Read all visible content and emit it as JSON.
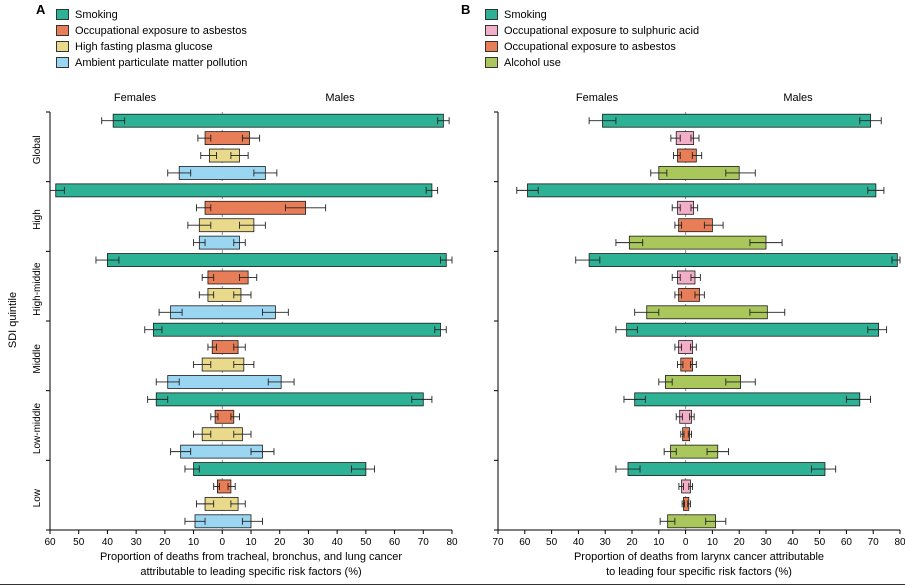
{
  "figure": {
    "background": "#ffffff"
  },
  "chart_data": [
    {
      "panel_label": "A",
      "type": "bar",
      "subtype": "diverging-horizontal-range-bars-with-error",
      "side_labels": {
        "left": "Females",
        "right": "Males"
      },
      "ylabel": "SDI quintile",
      "xlabel_lines": [
        "Proportion of deaths from tracheal, bronchus, and lung cancer",
        "attributable to leading specific risk factors (%)"
      ],
      "x_axis": {
        "min": -60,
        "max": 80,
        "tick_step": 10,
        "tick_labels": [
          "60",
          "50",
          "40",
          "30",
          "20",
          "10",
          "0",
          "10",
          "20",
          "30",
          "40",
          "50",
          "60",
          "70",
          "80"
        ]
      },
      "groups": [
        "Global",
        "High",
        "High-middle",
        "Middle",
        "Low-middle",
        "Low"
      ],
      "series": [
        {
          "name": "Smoking",
          "color": "#2eb295",
          "female": [
            38,
            58,
            40,
            24,
            23,
            10
          ],
          "female_ci": [
            [
              34,
              42
            ],
            [
              55,
              60
            ],
            [
              36,
              44
            ],
            [
              21,
              27
            ],
            [
              19,
              26
            ],
            [
              8,
              13
            ]
          ],
          "male": [
            77,
            73,
            78,
            76,
            70,
            50
          ],
          "male_ci": [
            [
              75,
              79
            ],
            [
              71,
              75
            ],
            [
              76,
              80
            ],
            [
              74,
              78
            ],
            [
              66,
              73
            ],
            [
              45,
              53
            ]
          ]
        },
        {
          "name": "Occupational exposure to asbestos",
          "color": "#e87e57",
          "female": [
            6,
            6,
            5,
            3.5,
            2.5,
            1.7
          ],
          "female_ci": [
            [
              4,
              8.5
            ],
            [
              4,
              9
            ],
            [
              3,
              7
            ],
            [
              2,
              5
            ],
            [
              1.5,
              4
            ],
            [
              1,
              3
            ]
          ],
          "male": [
            9.5,
            29,
            9,
            5.5,
            4,
            3
          ],
          "male_ci": [
            [
              7,
              13
            ],
            [
              22,
              36
            ],
            [
              6,
              12
            ],
            [
              4,
              8
            ],
            [
              3,
              6
            ],
            [
              2,
              4.5
            ]
          ]
        },
        {
          "name": "High fasting plasma glucose",
          "color": "#e9d98b",
          "female": [
            4.5,
            8,
            5,
            7,
            7,
            6
          ],
          "female_ci": [
            [
              2,
              7.5
            ],
            [
              4,
              12
            ],
            [
              3,
              8
            ],
            [
              4,
              10
            ],
            [
              4,
              10
            ],
            [
              3,
              9
            ]
          ],
          "male": [
            6,
            11,
            6.5,
            7.5,
            7,
            5.5
          ],
          "male_ci": [
            [
              3,
              9
            ],
            [
              6,
              15
            ],
            [
              4,
              10
            ],
            [
              4,
              11
            ],
            [
              4,
              10
            ],
            [
              3,
              8
            ]
          ]
        },
        {
          "name": "Ambient particulate matter pollution",
          "color": "#9ad6f2",
          "female": [
            15,
            8,
            18,
            19,
            14.5,
            9.5
          ],
          "female_ci": [
            [
              11,
              19
            ],
            [
              6,
              10
            ],
            [
              14,
              22
            ],
            [
              15,
              23
            ],
            [
              11,
              18
            ],
            [
              6,
              13
            ]
          ],
          "male": [
            15,
            6,
            18.5,
            20.5,
            14,
            10
          ],
          "male_ci": [
            [
              11,
              19
            ],
            [
              4,
              8
            ],
            [
              14,
              23
            ],
            [
              16,
              25
            ],
            [
              10,
              18
            ],
            [
              7,
              14
            ]
          ]
        }
      ]
    },
    {
      "panel_label": "B",
      "type": "bar",
      "subtype": "diverging-horizontal-range-bars-with-error",
      "side_labels": {
        "left": "Females",
        "right": "Males"
      },
      "xlabel_lines": [
        "Proportion of deaths from larynx cancer attributable",
        "to leading four specific risk factors (%)"
      ],
      "x_axis": {
        "min": -70,
        "max": 80,
        "tick_step": 10,
        "tick_labels": [
          "70",
          "60",
          "50",
          "40",
          "30",
          "20",
          "10",
          "0",
          "10",
          "20",
          "30",
          "40",
          "50",
          "60",
          "70",
          "80"
        ]
      },
      "groups": [
        "Global",
        "High",
        "High-middle",
        "Middle",
        "Low-middle",
        "Low"
      ],
      "series": [
        {
          "name": "Smoking",
          "color": "#2eb295",
          "female": [
            31,
            59,
            36,
            22,
            19,
            21.5
          ],
          "female_ci": [
            [
              26,
              36
            ],
            [
              55,
              63
            ],
            [
              32,
              41
            ],
            [
              18,
              26
            ],
            [
              15,
              23
            ],
            [
              17,
              26
            ]
          ],
          "male": [
            69,
            71,
            79,
            72,
            65,
            52
          ],
          "male_ci": [
            [
              65,
              73
            ],
            [
              68,
              74
            ],
            [
              77,
              80
            ],
            [
              68,
              75
            ],
            [
              60,
              69
            ],
            [
              47,
              56
            ]
          ]
        },
        {
          "name": "Occupational exposure to sulphuric acid",
          "color": "#f3afc8",
          "female": [
            3.5,
            3,
            3,
            2.6,
            2.2,
            1.5
          ],
          "female_ci": [
            [
              2,
              5.5
            ],
            [
              2,
              5
            ],
            [
              2,
              5
            ],
            [
              1.5,
              4
            ],
            [
              1.2,
              3.5
            ],
            [
              0.8,
              2.5
            ]
          ],
          "male": [
            3,
            3,
            3.5,
            2.6,
            2.2,
            1.8
          ],
          "male_ci": [
            [
              2,
              5
            ],
            [
              2,
              4.5
            ],
            [
              2,
              5.5
            ],
            [
              1.8,
              4
            ],
            [
              1.5,
              3.2
            ],
            [
              1.2,
              2.6
            ]
          ]
        },
        {
          "name": "Occupational exposure to asbestos",
          "color": "#e87e57",
          "female": [
            3,
            2.6,
            2.6,
            1.8,
            1.1,
            0.8
          ],
          "female_ci": [
            [
              2,
              4.5
            ],
            [
              1.5,
              4
            ],
            [
              1.5,
              4
            ],
            [
              1,
              3
            ],
            [
              0.6,
              1.8
            ],
            [
              0.4,
              1.3
            ]
          ],
          "male": [
            4,
            10,
            5.2,
            2.6,
            1.5,
            1.2
          ],
          "male_ci": [
            [
              2.5,
              6
            ],
            [
              7,
              14
            ],
            [
              3.5,
              7
            ],
            [
              1.8,
              4
            ],
            [
              1,
              2.2
            ],
            [
              0.8,
              1.8
            ]
          ]
        },
        {
          "name": "Alcohol use",
          "color": "#a9c75b",
          "female": [
            10,
            21,
            14.5,
            7.5,
            5.6,
            6.7
          ],
          "female_ci": [
            [
              7,
              13
            ],
            [
              16,
              26
            ],
            [
              10,
              19
            ],
            [
              5,
              10
            ],
            [
              3.5,
              8
            ],
            [
              4,
              9.5
            ]
          ],
          "male": [
            20,
            30,
            30.5,
            20.5,
            12,
            11.2
          ],
          "male_ci": [
            [
              15,
              26
            ],
            [
              24,
              36
            ],
            [
              24,
              37
            ],
            [
              15,
              26
            ],
            [
              8,
              16
            ],
            [
              7.5,
              15
            ]
          ]
        }
      ]
    }
  ]
}
